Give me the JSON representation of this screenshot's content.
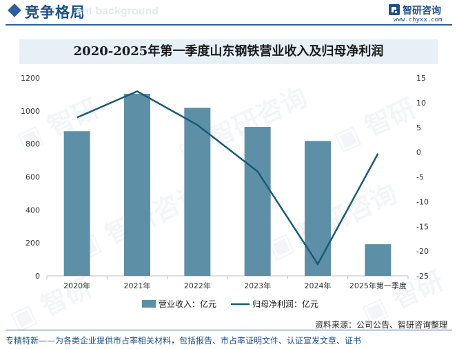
{
  "header": {
    "title": "竞争格局",
    "bg_text": "ent background",
    "brand_name": "智研咨询",
    "brand_url": "www.chyxx.com"
  },
  "colors": {
    "bar": "#5d8fa6",
    "line": "#1a5a77",
    "accent": "#2f5f96"
  },
  "chart_data": {
    "type": "bar+line",
    "title": "2020-2025年第一季度山东钢铁营业收入及归母净利润",
    "categories": [
      "2020年",
      "2021年",
      "2022年",
      "2023年",
      "2024年",
      "2025年第一季度"
    ],
    "series": [
      {
        "name": "营业收入：亿元",
        "type": "bar",
        "axis": "left",
        "values": [
          877,
          1104,
          1019,
          903,
          818,
          192
        ]
      },
      {
        "name": "归母净利润：亿元",
        "type": "line",
        "axis": "right",
        "values": [
          7.0,
          12.3,
          5.5,
          -3.9,
          -22.6,
          -0.3
        ]
      }
    ],
    "y_left": {
      "min": 0,
      "max": 1200,
      "ticks": [
        0,
        200,
        400,
        600,
        800,
        1000,
        1200
      ]
    },
    "y_right": {
      "min": -25,
      "max": 15,
      "ticks": [
        15,
        10,
        5,
        0,
        -5,
        -10,
        -15,
        -20,
        -25
      ]
    },
    "grid": false,
    "legend_position": "bottom"
  },
  "footer": {
    "source": "资料来源：公司公告、智研咨询整理",
    "tagline": "专精特新——为各类企业提供市占率相关材料，包括报告、市占率证明文件、认证宣发文章、证书"
  }
}
